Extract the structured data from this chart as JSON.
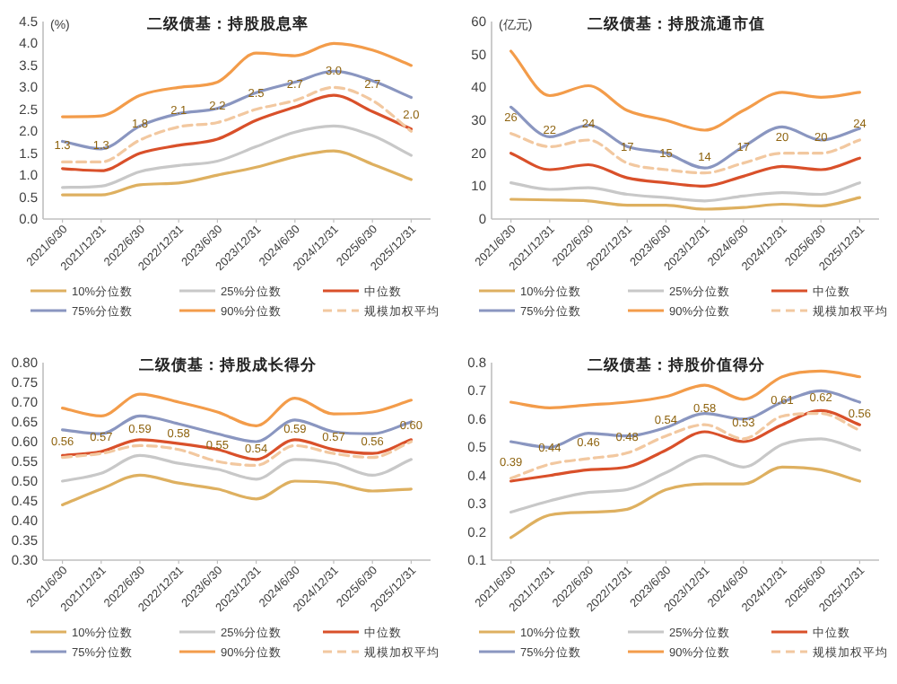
{
  "chart_data": [
    {
      "type": "line",
      "title": "二级债基：持股股息率",
      "ylabel": "(%)",
      "legend": "bottom",
      "categories": [
        "2021/6/30",
        "2021/12/31",
        "2022/6/30",
        "2022/12/31",
        "2023/6/30",
        "2023/12/31",
        "2024/6/30",
        "2024/12/31",
        "2025/6/30",
        "2025/12/31"
      ],
      "ylim": [
        0,
        4.5
      ],
      "yticks": [
        {
          "value": 0,
          "label": "0.0"
        },
        {
          "value": 0.5,
          "label": "0.5"
        },
        {
          "value": 1,
          "label": "1.0"
        },
        {
          "value": 1.5,
          "label": "1.5"
        },
        {
          "value": 2,
          "label": "2.0"
        },
        {
          "value": 2.5,
          "label": "2.5"
        },
        {
          "value": 3,
          "label": "3.0"
        },
        {
          "value": 3.5,
          "label": "3.5"
        },
        {
          "value": 4,
          "label": "4.0"
        },
        {
          "value": 4.5,
          "label": "4.5"
        }
      ],
      "series": [
        {
          "name": "10%分位数",
          "color": "#deb060",
          "values": [
            0.55,
            0.55,
            0.78,
            0.82,
            1.0,
            1.18,
            1.42,
            1.55,
            1.25,
            0.9
          ]
        },
        {
          "name": "25%分位数",
          "color": "#c8c8c8",
          "values": [
            0.72,
            0.75,
            1.08,
            1.22,
            1.32,
            1.65,
            1.98,
            2.12,
            1.9,
            1.45
          ]
        },
        {
          "name": "中位数",
          "color": "#d9502a",
          "values": [
            1.15,
            1.1,
            1.5,
            1.68,
            1.82,
            2.25,
            2.55,
            2.82,
            2.45,
            2.05
          ]
        },
        {
          "name": "75%分位数",
          "color": "#8a96c0",
          "values": [
            1.77,
            1.6,
            2.12,
            2.4,
            2.52,
            2.88,
            3.12,
            3.37,
            3.15,
            2.77
          ]
        },
        {
          "name": "90%分位数",
          "color": "#f39c4a",
          "values": [
            2.33,
            2.35,
            2.82,
            3.0,
            3.12,
            3.78,
            3.72,
            4.0,
            3.85,
            3.5
          ]
        },
        {
          "name": "规模加权平均",
          "color": "#f2c8a0",
          "line_style": "dashed",
          "values": [
            1.3,
            1.3,
            1.8,
            2.1,
            2.2,
            2.5,
            2.7,
            3.0,
            2.7,
            2.0
          ],
          "value_labels": [
            "1.3",
            "1.3",
            "1.8",
            "2.1",
            "2.2",
            "2.5",
            "2.7",
            "3.0",
            "2.7",
            "2.0"
          ]
        }
      ]
    },
    {
      "type": "line",
      "title": "二级债基：持股流通市值",
      "ylabel": "(亿元)",
      "legend": "bottom",
      "categories": [
        "2021/6/30",
        "2021/12/31",
        "2022/6/30",
        "2022/12/31",
        "2023/6/30",
        "2023/12/31",
        "2024/6/30",
        "2024/12/31",
        "2025/6/30",
        "2025/12/31"
      ],
      "ylim": [
        0,
        60
      ],
      "yticks": [
        0,
        10,
        20,
        30,
        40,
        50,
        60
      ],
      "series": [
        {
          "name": "10%分位数",
          "color": "#deb060",
          "values": [
            6,
            5.8,
            5.5,
            4.2,
            4.2,
            3,
            3.5,
            4.5,
            4,
            6.5
          ]
        },
        {
          "name": "25%分位数",
          "color": "#c8c8c8",
          "values": [
            11,
            9,
            9.5,
            7.5,
            6.5,
            5.5,
            7,
            8,
            7.5,
            11
          ]
        },
        {
          "name": "中位数",
          "color": "#d9502a",
          "values": [
            20,
            15,
            16.5,
            12.5,
            11,
            10,
            13,
            16,
            15,
            18.5
          ]
        },
        {
          "name": "75%分位数",
          "color": "#8a96c0",
          "values": [
            34,
            25,
            28.5,
            22,
            20,
            15.5,
            22,
            28,
            24,
            27.5
          ]
        },
        {
          "name": "90%分位数",
          "color": "#f39c4a",
          "values": [
            51,
            37.5,
            40.5,
            33,
            30,
            27,
            33,
            38.5,
            37,
            38.5
          ]
        },
        {
          "name": "规模加权平均",
          "color": "#f2c8a0",
          "line_style": "dashed",
          "values": [
            26,
            22,
            24,
            17,
            15,
            14,
            17,
            20,
            20,
            24
          ],
          "value_labels": [
            "26",
            "22",
            "24",
            "17",
            "15",
            "14",
            "17",
            "20",
            "20",
            "24"
          ]
        }
      ]
    },
    {
      "type": "line",
      "title": "二级债基：持股成长得分",
      "legend": "bottom",
      "categories": [
        "2021/6/30",
        "2021/12/31",
        "2022/6/30",
        "2022/12/31",
        "2023/6/30",
        "2023/12/31",
        "2024/6/30",
        "2024/12/31",
        "2025/6/30",
        "2025/12/31"
      ],
      "ylim": [
        0.3,
        0.8
      ],
      "yticks": [
        {
          "value": 0.3,
          "label": "0.30"
        },
        {
          "value": 0.35,
          "label": "0.35"
        },
        {
          "value": 0.4,
          "label": "0.40"
        },
        {
          "value": 0.45,
          "label": "0.45"
        },
        {
          "value": 0.5,
          "label": "0.50"
        },
        {
          "value": 0.55,
          "label": "0.55"
        },
        {
          "value": 0.6,
          "label": "0.60"
        },
        {
          "value": 0.65,
          "label": "0.65"
        },
        {
          "value": 0.7,
          "label": "0.70"
        },
        {
          "value": 0.75,
          "label": "0.75"
        },
        {
          "value": 0.8,
          "label": "0.80"
        }
      ],
      "series": [
        {
          "name": "10%分位数",
          "color": "#deb060",
          "values": [
            0.44,
            0.48,
            0.515,
            0.495,
            0.48,
            0.455,
            0.5,
            0.495,
            0.475,
            0.48
          ]
        },
        {
          "name": "25%分位数",
          "color": "#c8c8c8",
          "values": [
            0.5,
            0.52,
            0.565,
            0.545,
            0.53,
            0.505,
            0.555,
            0.545,
            0.515,
            0.555
          ]
        },
        {
          "name": "中位数",
          "color": "#d9502a",
          "values": [
            0.565,
            0.575,
            0.605,
            0.595,
            0.58,
            0.555,
            0.605,
            0.58,
            0.57,
            0.605
          ]
        },
        {
          "name": "75%分位数",
          "color": "#8a96c0",
          "values": [
            0.63,
            0.62,
            0.665,
            0.645,
            0.62,
            0.6,
            0.655,
            0.625,
            0.62,
            0.65
          ]
        },
        {
          "name": "90%分位数",
          "color": "#f39c4a",
          "values": [
            0.685,
            0.665,
            0.72,
            0.7,
            0.675,
            0.64,
            0.71,
            0.67,
            0.675,
            0.705
          ]
        },
        {
          "name": "规模加权平均",
          "color": "#f2c8a0",
          "line_style": "dashed",
          "values": [
            0.56,
            0.57,
            0.59,
            0.58,
            0.55,
            0.54,
            0.59,
            0.57,
            0.56,
            0.6
          ],
          "value_labels": [
            "0.56",
            "0.57",
            "0.59",
            "0.58",
            "0.55",
            "0.54",
            "0.59",
            "0.57",
            "0.56",
            "0.60"
          ]
        }
      ]
    },
    {
      "type": "line",
      "title": "二级债基：持股价值得分",
      "legend": "bottom",
      "categories": [
        "2021/6/30",
        "2021/12/31",
        "2022/6/30",
        "2022/12/31",
        "2023/6/30",
        "2023/12/31",
        "2024/6/30",
        "2024/12/31",
        "2025/6/30",
        "2025/12/31"
      ],
      "ylim": [
        0.1,
        0.8
      ],
      "yticks": [
        0.1,
        0.2,
        0.3,
        0.4,
        0.5,
        0.6,
        0.7,
        0.8
      ],
      "series": [
        {
          "name": "10%分位数",
          "color": "#deb060",
          "values": [
            0.18,
            0.26,
            0.27,
            0.28,
            0.35,
            0.37,
            0.37,
            0.43,
            0.42,
            0.38
          ]
        },
        {
          "name": "25%分位数",
          "color": "#c8c8c8",
          "values": [
            0.27,
            0.31,
            0.34,
            0.35,
            0.41,
            0.47,
            0.43,
            0.51,
            0.53,
            0.49
          ]
        },
        {
          "name": "中位数",
          "color": "#d9502a",
          "values": [
            0.38,
            0.4,
            0.42,
            0.43,
            0.49,
            0.555,
            0.52,
            0.58,
            0.63,
            0.58
          ]
        },
        {
          "name": "75%分位数",
          "color": "#8a96c0",
          "values": [
            0.52,
            0.5,
            0.55,
            0.54,
            0.57,
            0.62,
            0.6,
            0.66,
            0.7,
            0.66
          ]
        },
        {
          "name": "90%分位数",
          "color": "#f39c4a",
          "values": [
            0.66,
            0.64,
            0.65,
            0.66,
            0.68,
            0.72,
            0.67,
            0.75,
            0.77,
            0.75
          ]
        },
        {
          "name": "规模加权平均",
          "color": "#f2c8a0",
          "line_style": "dashed",
          "values": [
            0.39,
            0.44,
            0.46,
            0.48,
            0.54,
            0.58,
            0.53,
            0.61,
            0.62,
            0.56
          ],
          "value_labels": [
            "0.39",
            "0.44",
            "0.46",
            "0.48",
            "0.54",
            "0.58",
            "0.53",
            "0.61",
            "0.62",
            "0.56"
          ]
        }
      ]
    }
  ]
}
